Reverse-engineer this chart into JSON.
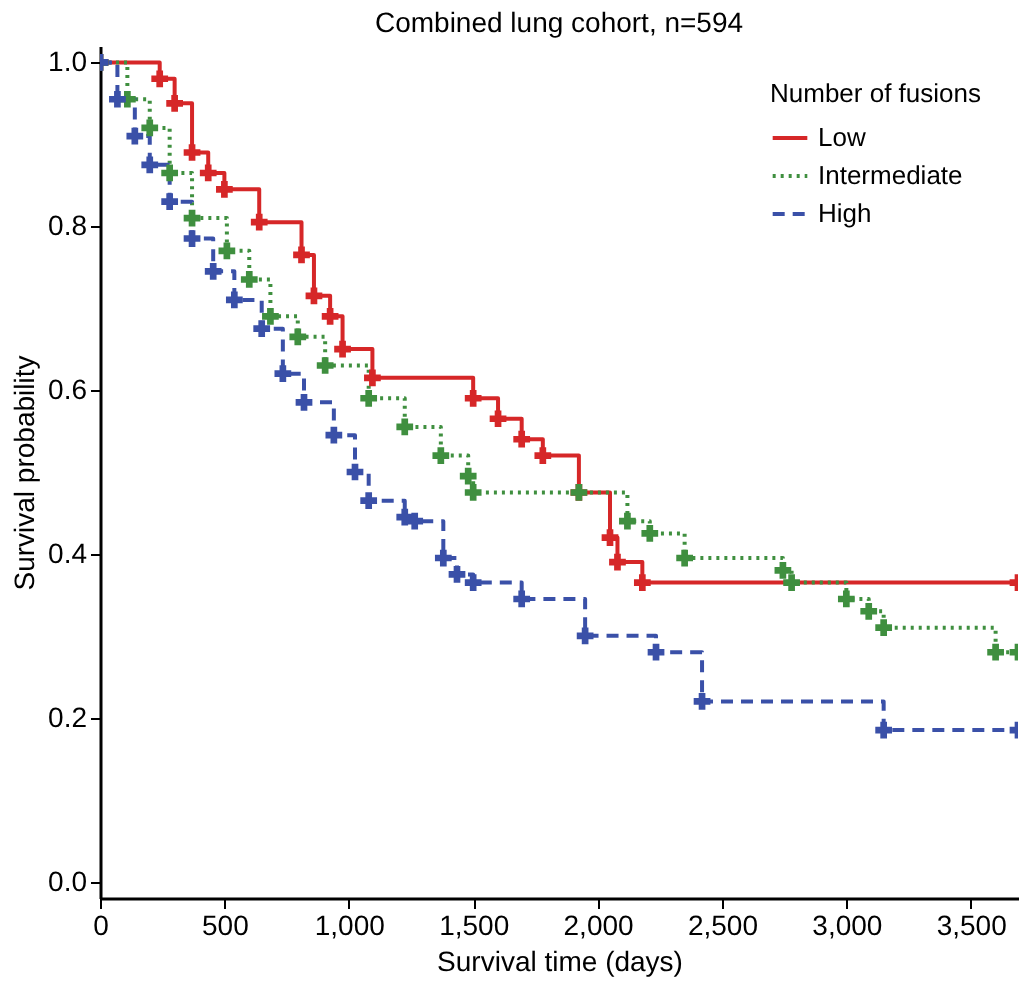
{
  "chart_data": {
    "type": "step",
    "title": "Combined lung cohort, n=594",
    "xlabel": "Survival time (days)",
    "ylabel": "Survival probability",
    "legend_title": "Number of fusions",
    "legend": "top right",
    "grid": false,
    "marker": "cross",
    "xlim": [
      0,
      3690
    ],
    "ylim": [
      -0.02,
      1.02
    ],
    "xticks": [
      0,
      500,
      {
        "value": 1000,
        "label": "1,000"
      },
      {
        "value": 1500,
        "label": "1,500"
      },
      {
        "value": 2000,
        "label": "2,000"
      },
      {
        "value": 2500,
        "label": "2,500"
      },
      {
        "value": 3000,
        "label": "3,000"
      },
      {
        "value": 3500,
        "label": "3,500"
      }
    ],
    "yticks": [
      {
        "value": 0,
        "label": "0.0"
      },
      {
        "value": 0.2,
        "label": "0.2"
      },
      {
        "value": 0.4,
        "label": "0.4"
      },
      {
        "value": 0.6,
        "label": "0.6"
      },
      {
        "value": 0.8,
        "label": "0.8"
      },
      {
        "value": 1,
        "label": "1.0"
      }
    ],
    "series": [
      {
        "name": "Low",
        "color": "#d62728",
        "line_style": "solid",
        "x": [
          0,
          240,
          300,
          370,
          435,
          500,
          640,
          810,
          860,
          925,
          975,
          1095,
          1500,
          1600,
          1695,
          1780,
          1925,
          2050,
          2080,
          2180,
          3690
        ],
        "values": [
          1.0,
          0.98,
          0.95,
          0.89,
          0.865,
          0.845,
          0.805,
          0.765,
          0.715,
          0.69,
          0.65,
          0.615,
          0.59,
          0.565,
          0.54,
          0.52,
          0.475,
          0.42,
          0.39,
          0.365,
          0.365
        ]
      },
      {
        "name": "Intermediate",
        "color": "#3f8f3f",
        "line_style": "dotted",
        "x": [
          0,
          110,
          200,
          280,
          370,
          510,
          600,
          685,
          795,
          905,
          1080,
          1225,
          1370,
          1480,
          1500,
          1925,
          2120,
          2210,
          2350,
          2745,
          2780,
          3000,
          3090,
          3150,
          3600,
          3690
        ],
        "values": [
          1.0,
          0.955,
          0.92,
          0.865,
          0.81,
          0.77,
          0.735,
          0.69,
          0.665,
          0.63,
          0.59,
          0.555,
          0.52,
          0.495,
          0.475,
          0.475,
          0.44,
          0.425,
          0.395,
          0.38,
          0.365,
          0.345,
          0.33,
          0.31,
          0.28,
          0.28
        ]
      },
      {
        "name": "High",
        "color": "#3a50a8",
        "line_style": "dashed",
        "x": [
          0,
          70,
          140,
          200,
          280,
          370,
          455,
          540,
          650,
          735,
          820,
          940,
          1025,
          1080,
          1225,
          1265,
          1380,
          1435,
          1500,
          1695,
          1950,
          2235,
          2420,
          3150,
          3690
        ],
        "values": [
          1.0,
          0.955,
          0.91,
          0.875,
          0.83,
          0.785,
          0.745,
          0.71,
          0.675,
          0.62,
          0.585,
          0.545,
          0.5,
          0.465,
          0.445,
          0.44,
          0.395,
          0.375,
          0.365,
          0.345,
          0.3,
          0.28,
          0.22,
          0.185,
          0.185
        ]
      }
    ]
  }
}
